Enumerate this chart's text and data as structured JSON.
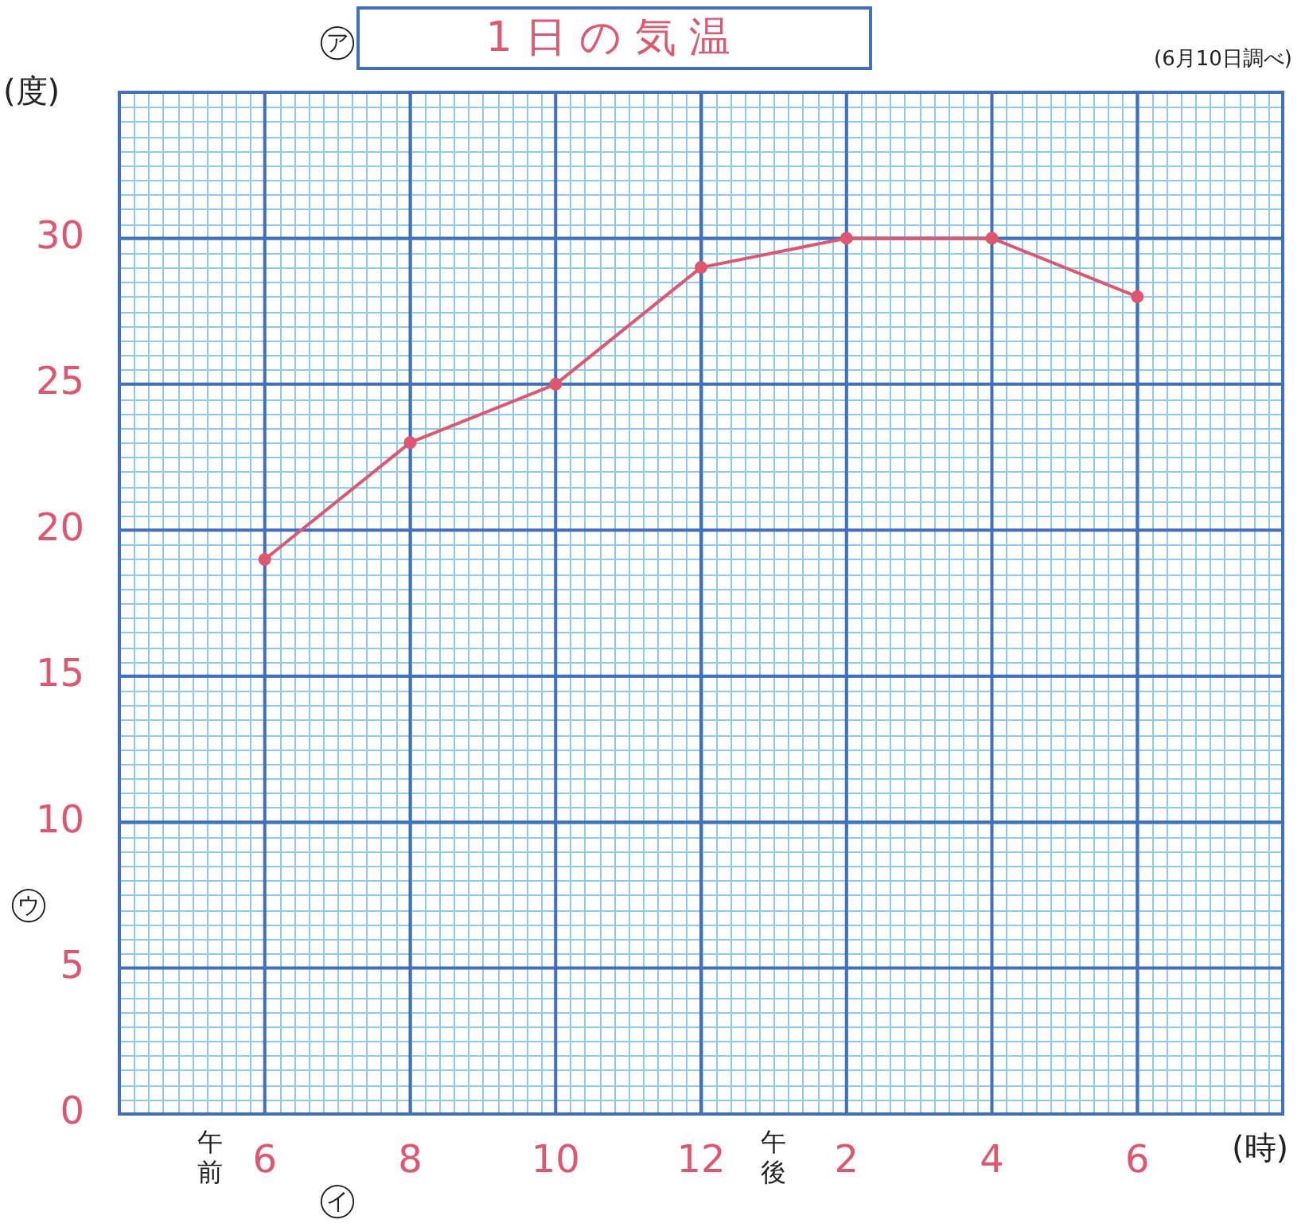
{
  "chart_data": {
    "type": "line",
    "title": "1日の気温",
    "subtitle": "(6月10日調べ)",
    "ylabel": "(度)",
    "xlabel": "(時)",
    "annotations": [
      "㋐",
      "㋑",
      "㋒",
      "午前",
      "午後"
    ],
    "categories": [
      "6",
      "8",
      "10",
      "12",
      "2",
      "4",
      "6"
    ],
    "series": [
      {
        "color": "#e0566e",
        "values": [
          19,
          23,
          25,
          29,
          30,
          30,
          28
        ]
      }
    ],
    "ylim": [
      0,
      35
    ],
    "yticks": [
      0,
      5,
      10,
      15,
      20,
      25,
      30
    ],
    "grid": true,
    "legend": false,
    "marker": "circle",
    "line_style": "solid"
  }
}
